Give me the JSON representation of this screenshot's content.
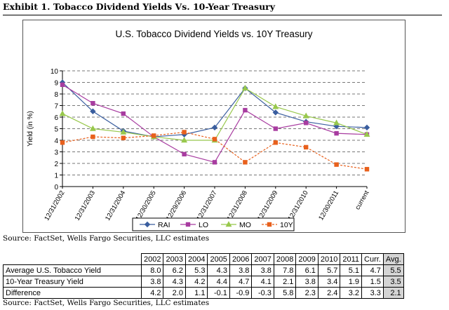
{
  "exhibit_title": "Exhibit 1. Tobacco Dividend Yields Vs. 10-Year Treasury",
  "source_top": "Source: FactSet, Wells Fargo Securities, LLC estimates",
  "source_bottom": "Source: FactSet, Wells Fargo Securities, LLC estimates",
  "colors": {
    "RAI": "#3a5e9f",
    "LO": "#a83ca0",
    "MO": "#98c84c",
    "10Y": "#e8601c"
  },
  "chart_data": {
    "type": "line",
    "title": "U.S. Tobacco Dividend Yields vs. 10Y Treasury",
    "xlabel": "",
    "ylabel": "Yield (in %)",
    "ylim": [
      0,
      10
    ],
    "yticks": [
      "0",
      "1",
      "2",
      "3",
      "4",
      "5",
      "6",
      "7",
      "8",
      "9",
      "10"
    ],
    "grid": "horizontal dashed",
    "categories": [
      "12/31/2002",
      "12/31/2003",
      "12/31/2004",
      "12/30/2005",
      "12/29/2006",
      "12/31/2007",
      "12/31/2008",
      "12/31/2009",
      "12/31/2010",
      "12/30/2011",
      "current"
    ],
    "legend": "bottom",
    "series": [
      {
        "name": "RAI",
        "style": "solid",
        "marker": "diamond",
        "values": [
          9.0,
          6.5,
          4.8,
          4.3,
          4.5,
          5.1,
          8.5,
          6.4,
          5.6,
          5.2,
          5.1
        ]
      },
      {
        "name": "LO",
        "style": "solid",
        "marker": "square",
        "values": [
          8.8,
          7.2,
          6.3,
          4.3,
          2.8,
          2.1,
          6.6,
          5.0,
          5.5,
          4.6,
          4.5
        ]
      },
      {
        "name": "MO",
        "style": "solid",
        "marker": "triangle",
        "values": [
          6.3,
          5.0,
          4.7,
          4.3,
          4.0,
          4.0,
          8.5,
          6.9,
          6.1,
          5.5,
          4.5
        ]
      },
      {
        "name": "10Y",
        "style": "dashed",
        "marker": "square",
        "values": [
          3.8,
          4.3,
          4.2,
          4.4,
          4.7,
          4.1,
          2.1,
          3.8,
          3.4,
          1.9,
          1.5
        ]
      }
    ]
  },
  "table": {
    "headers": [
      "2002",
      "2003",
      "2004",
      "2005",
      "2006",
      "2007",
      "2008",
      "2009",
      "2010",
      "2011",
      "Curr.",
      "Avg."
    ],
    "rows": [
      {
        "label": "Average U.S. Tobacco Yield",
        "values": [
          "8.0",
          "6.2",
          "5.3",
          "4.3",
          "3.8",
          "3.8",
          "7.8",
          "6.1",
          "5.7",
          "5.1",
          "4.7",
          "5.5"
        ]
      },
      {
        "label": "10-Year Treasury Yield",
        "values": [
          "3.8",
          "4.3",
          "4.2",
          "4.4",
          "4.7",
          "4.1",
          "2.1",
          "3.8",
          "3.4",
          "1.9",
          "1.5",
          "3.5"
        ]
      },
      {
        "label": "Difference",
        "values": [
          "4.2",
          "2.0",
          "1.1",
          "-0.1",
          "-0.9",
          "-0.3",
          "5.8",
          "2.3",
          "2.4",
          "3.2",
          "3.3",
          "2.1"
        ]
      }
    ]
  }
}
